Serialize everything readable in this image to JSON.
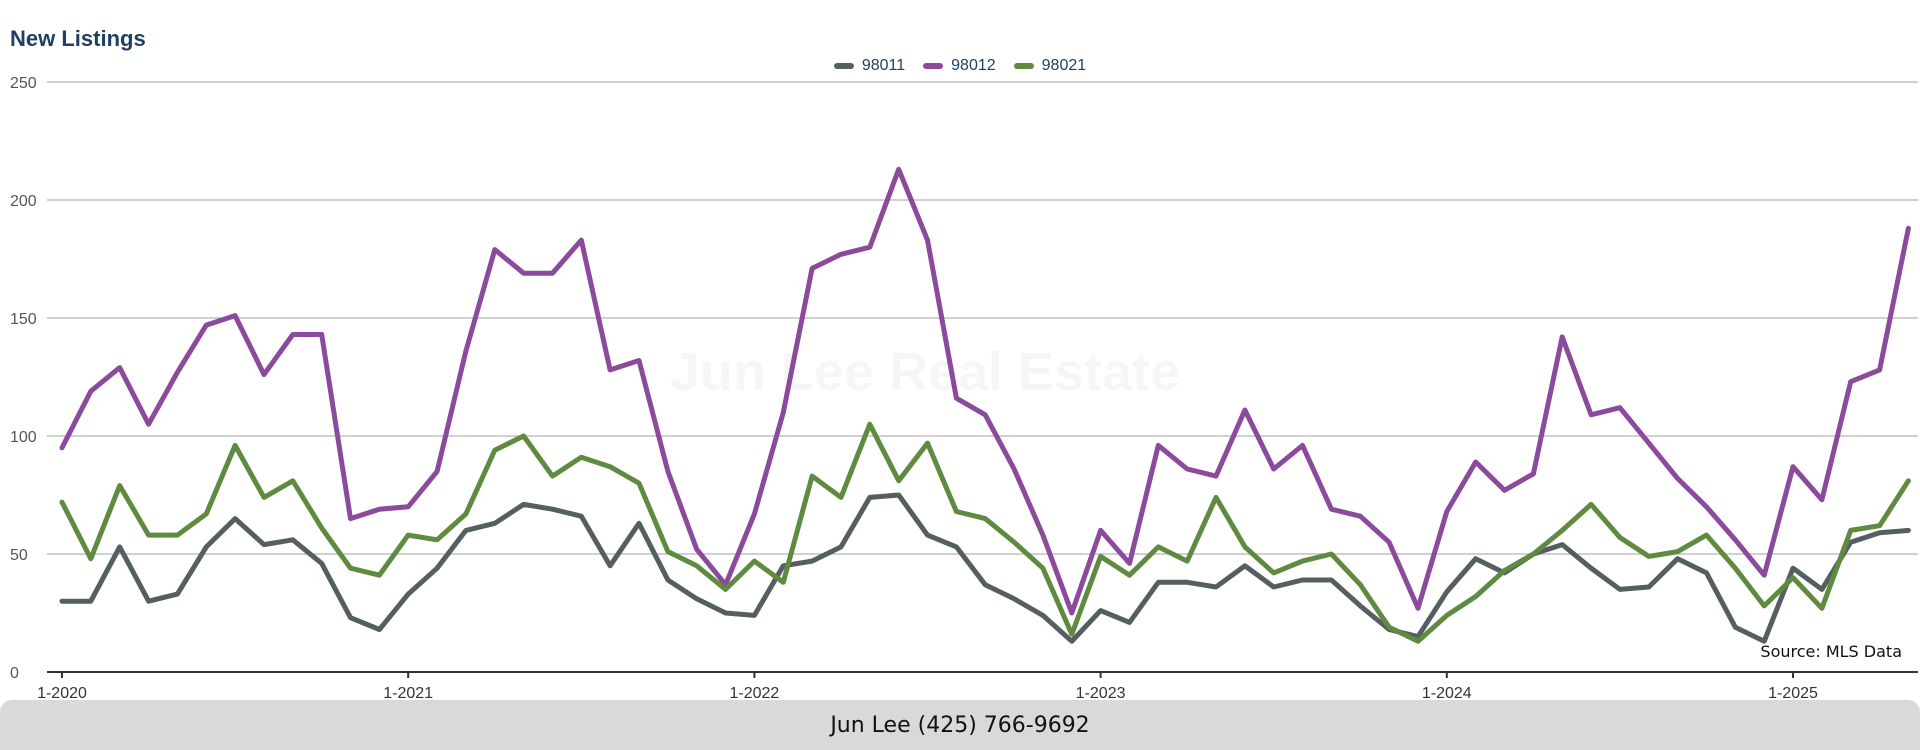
{
  "chart_data": {
    "type": "line",
    "title": "New Listings",
    "watermark": "Jun Lee Real Estate",
    "source_note": "Source: MLS Data",
    "ylim": [
      0,
      250
    ],
    "y_ticks": [
      0,
      50,
      100,
      150,
      200,
      250
    ],
    "x_tick_labels": [
      "1-2020",
      "1-2021",
      "1-2022",
      "1-2023",
      "1-2024",
      "1-2025"
    ],
    "x_start": "2020-01",
    "grid": true,
    "legend_position": "top-center",
    "series": [
      {
        "name": "98011",
        "color": "#555f61",
        "values": [
          30,
          30,
          53,
          30,
          33,
          53,
          65,
          54,
          56,
          46,
          23,
          18,
          33,
          44,
          60,
          63,
          71,
          69,
          66,
          45,
          63,
          39,
          31,
          25,
          24,
          45,
          47,
          53,
          74,
          75,
          58,
          53,
          37,
          31,
          24,
          13,
          26,
          21,
          38,
          38,
          36,
          45,
          36,
          39,
          39,
          28,
          18,
          15,
          34,
          48,
          42,
          50,
          54,
          44,
          35,
          36,
          48,
          42,
          19,
          13,
          44,
          35,
          55,
          59,
          60
        ]
      },
      {
        "name": "98012",
        "color": "#8b4a9b",
        "values": [
          95,
          119,
          129,
          105,
          127,
          147,
          151,
          126,
          143,
          143,
          65,
          69,
          70,
          85,
          136,
          179,
          169,
          169,
          183,
          128,
          132,
          85,
          52,
          37,
          67,
          110,
          171,
          177,
          180,
          213,
          183,
          116,
          109,
          86,
          58,
          25,
          60,
          46,
          96,
          86,
          83,
          111,
          86,
          96,
          69,
          66,
          55,
          27,
          68,
          89,
          77,
          84,
          142,
          109,
          112,
          97,
          82,
          70,
          56,
          41,
          87,
          73,
          123,
          128,
          188
        ]
      },
      {
        "name": "98021",
        "color": "#5e8b3f",
        "values": [
          72,
          48,
          79,
          58,
          58,
          67,
          96,
          74,
          81,
          61,
          44,
          41,
          58,
          56,
          67,
          94,
          100,
          83,
          91,
          87,
          80,
          51,
          45,
          35,
          47,
          38,
          83,
          74,
          105,
          81,
          97,
          68,
          65,
          55,
          44,
          16,
          49,
          41,
          53,
          47,
          74,
          53,
          42,
          47,
          50,
          37,
          19,
          13,
          24,
          32,
          43,
          50,
          60,
          71,
          57,
          49,
          51,
          58,
          44,
          28,
          40,
          27,
          60,
          62,
          81
        ]
      }
    ]
  },
  "footer": {
    "contact": "Jun Lee (425) 766-9692"
  },
  "colors": {
    "title": "#1f3f63",
    "grid": "#b5b5b5",
    "axis": "#333333",
    "footer_bg": "#d9d9d9"
  }
}
